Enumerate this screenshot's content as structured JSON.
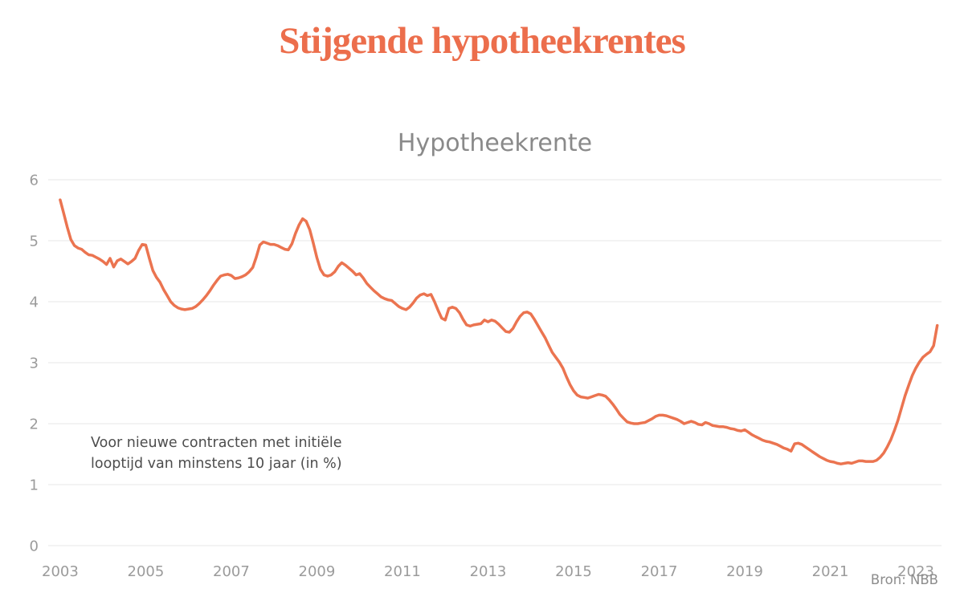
{
  "page": {
    "title": "Stijgende hypotheekrentes"
  },
  "chart": {
    "title": "Hypotheekrente",
    "annotation_lines": [
      "Voor nieuwe contracten met initiële",
      "looptijd van minstens 10 jaar (in %)"
    ],
    "source": "Bron: NBB"
  },
  "colors": {
    "accent": "#EC6E4C",
    "line": "#EB7450",
    "grid": "#E7E7E7",
    "tick_label": "#9B9B9B",
    "chart_title": "#8A8A8A",
    "annotation": "#4D4D4D",
    "source": "#8C8C8C"
  },
  "chart_data": {
    "type": "line",
    "title": "Hypotheekrente",
    "xlabel": "",
    "ylabel": "",
    "x_ticks": [
      2003,
      2005,
      2007,
      2009,
      2011,
      2013,
      2015,
      2017,
      2019,
      2021,
      2023
    ],
    "y_ticks": [
      0,
      1,
      2,
      3,
      4,
      5,
      6
    ],
    "xlim": [
      2002.72,
      2023.6
    ],
    "ylim": [
      0,
      6
    ],
    "grid": "horizontal-only",
    "legend": "none",
    "line_width": 3.5,
    "unit": "percent",
    "annotation": "Voor nieuwe contracten met initiële looptijd van minstens 10 jaar (in %)",
    "source": "Bron: NBB",
    "series": [
      {
        "name": "Hypotheekrente",
        "x_start": 2003.0,
        "x_step": 0.083333,
        "values": [
          5.67,
          5.45,
          5.22,
          5.02,
          4.92,
          4.88,
          4.86,
          4.81,
          4.77,
          4.76,
          4.73,
          4.7,
          4.66,
          4.61,
          4.71,
          4.57,
          4.67,
          4.7,
          4.66,
          4.62,
          4.66,
          4.71,
          4.84,
          4.94,
          4.93,
          4.71,
          4.51,
          4.4,
          4.32,
          4.2,
          4.1,
          4.0,
          3.94,
          3.9,
          3.88,
          3.87,
          3.88,
          3.89,
          3.92,
          3.97,
          4.03,
          4.1,
          4.18,
          4.27,
          4.35,
          4.42,
          4.44,
          4.45,
          4.43,
          4.38,
          4.39,
          4.41,
          4.44,
          4.49,
          4.56,
          4.73,
          4.93,
          4.98,
          4.96,
          4.94,
          4.94,
          4.92,
          4.89,
          4.86,
          4.85,
          4.95,
          5.12,
          5.26,
          5.36,
          5.32,
          5.18,
          4.96,
          4.72,
          4.53,
          4.44,
          4.42,
          4.44,
          4.49,
          4.58,
          4.64,
          4.6,
          4.55,
          4.5,
          4.44,
          4.46,
          4.39,
          4.3,
          4.24,
          4.18,
          4.13,
          4.08,
          4.05,
          4.03,
          4.02,
          3.97,
          3.92,
          3.89,
          3.87,
          3.91,
          3.98,
          4.06,
          4.11,
          4.13,
          4.1,
          4.12,
          4.0,
          3.86,
          3.73,
          3.7,
          3.89,
          3.91,
          3.89,
          3.82,
          3.71,
          3.62,
          3.6,
          3.62,
          3.63,
          3.64,
          3.7,
          3.67,
          3.7,
          3.68,
          3.63,
          3.57,
          3.51,
          3.5,
          3.56,
          3.67,
          3.76,
          3.82,
          3.83,
          3.8,
          3.71,
          3.61,
          3.51,
          3.41,
          3.29,
          3.17,
          3.09,
          3.01,
          2.91,
          2.77,
          2.64,
          2.54,
          2.47,
          2.44,
          2.43,
          2.42,
          2.44,
          2.46,
          2.48,
          2.47,
          2.45,
          2.39,
          2.32,
          2.24,
          2.15,
          2.09,
          2.03,
          2.01,
          2.0,
          2.0,
          2.01,
          2.02,
          2.05,
          2.08,
          2.12,
          2.14,
          2.14,
          2.13,
          2.11,
          2.09,
          2.07,
          2.04,
          2.0,
          2.02,
          2.04,
          2.02,
          1.99,
          1.98,
          2.02,
          2.0,
          1.97,
          1.96,
          1.95,
          1.95,
          1.94,
          1.92,
          1.91,
          1.89,
          1.88,
          1.9,
          1.86,
          1.82,
          1.79,
          1.76,
          1.73,
          1.71,
          1.7,
          1.68,
          1.66,
          1.63,
          1.6,
          1.58,
          1.55,
          1.67,
          1.68,
          1.66,
          1.62,
          1.58,
          1.54,
          1.5,
          1.46,
          1.43,
          1.4,
          1.38,
          1.37,
          1.35,
          1.34,
          1.35,
          1.36,
          1.35,
          1.37,
          1.39,
          1.39,
          1.38,
          1.38,
          1.38,
          1.4,
          1.45,
          1.52,
          1.62,
          1.74,
          1.89,
          2.06,
          2.26,
          2.46,
          2.63,
          2.79,
          2.91,
          3.01,
          3.09,
          3.14,
          3.18,
          3.28,
          3.61
        ]
      }
    ]
  }
}
